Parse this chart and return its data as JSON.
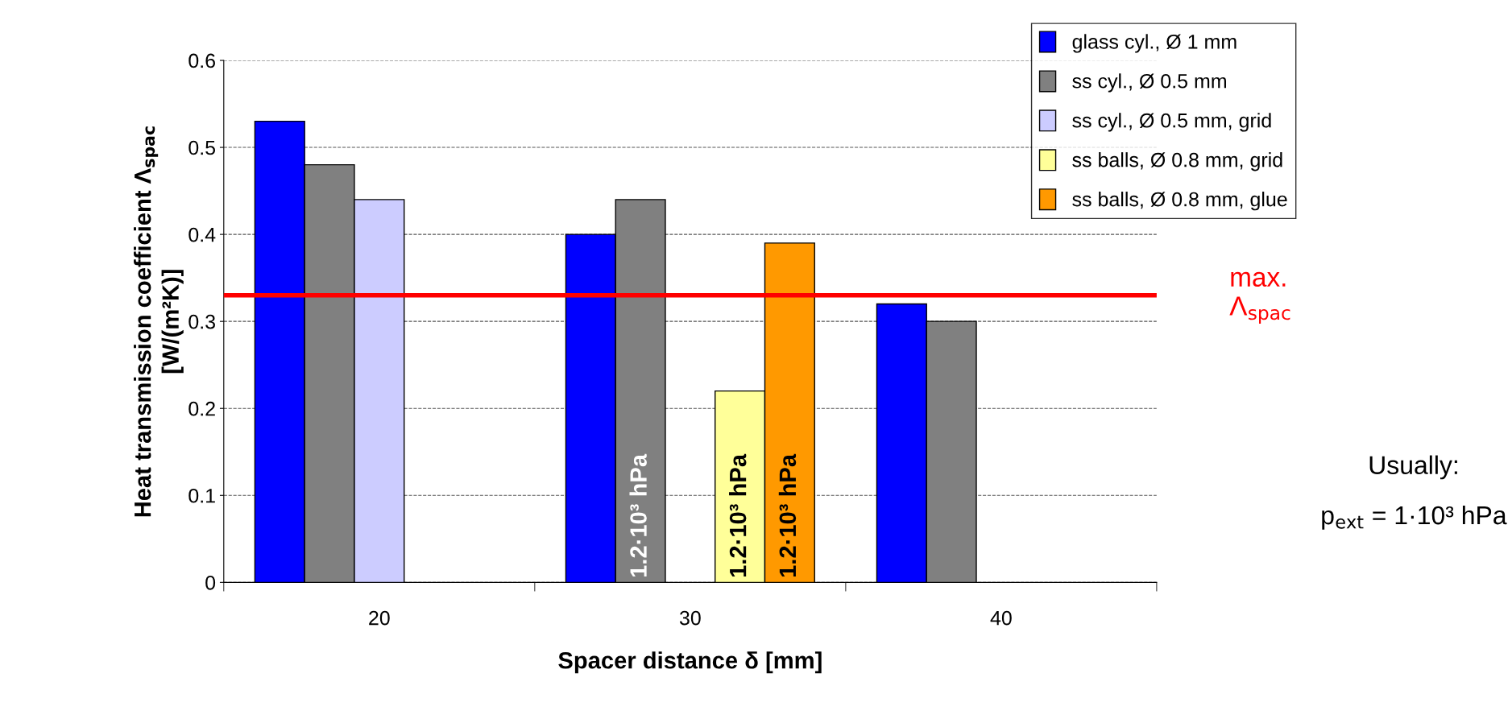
{
  "chart_data": {
    "type": "bar",
    "xlabel": "Spacer distance δ [mm]",
    "ylabel": "Heat transmission coefficient Λ$_{spac}$\n[W/(m²K)]",
    "categories": [
      "20",
      "30",
      "40"
    ],
    "series": [
      {
        "name": "glass cyl., Ø 1 mm",
        "color": "#0000ff",
        "values": [
          0.53,
          0.4,
          0.32
        ]
      },
      {
        "name": "ss cyl., Ø 0.5 mm",
        "color": "#808080",
        "values": [
          0.48,
          0.44,
          0.3
        ]
      },
      {
        "name": "ss cyl., Ø 0.5 mm, grid",
        "color": "#ccccff",
        "values": [
          0.44,
          null,
          null
        ]
      },
      {
        "name": "ss balls, Ø 0.8 mm, grid",
        "color": "#ffff99",
        "values": [
          null,
          0.22,
          null
        ]
      },
      {
        "name": "ss balls, Ø 0.8 mm, glue",
        "color": "#ff9900",
        "values": [
          null,
          0.39,
          null
        ]
      }
    ],
    "ylim": [
      0,
      0.6
    ],
    "yticks": [
      0,
      0.1,
      0.2,
      0.3,
      0.4,
      0.5,
      0.6
    ],
    "grid": "y",
    "legend": "top right",
    "ref_lines": [
      {
        "axis": "y",
        "value": 0.33,
        "label": "max.\nΛ$_{spac}$",
        "color": "#ff0000"
      }
    ],
    "annotations": [
      "1.2·10³ hPa",
      "1.2·10³ hPa",
      "1.2·10³ hPa",
      "Usually:",
      "p$_{ext}$ = 1·10³ hPa"
    ]
  }
}
